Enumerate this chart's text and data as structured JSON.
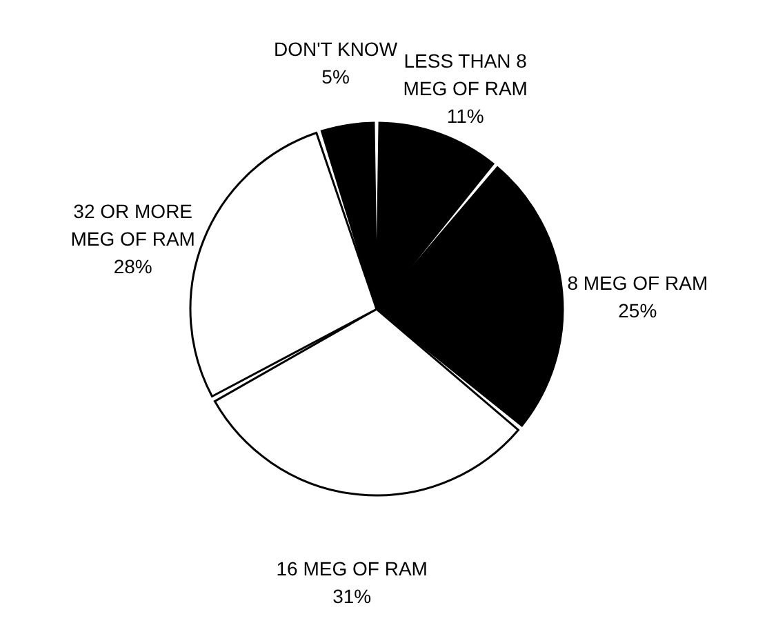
{
  "chart_data": {
    "type": "pie",
    "categories": [
      "LESS THAN 8 MEG OF RAM",
      "8 MEG OF RAM",
      "16 MEG OF RAM",
      "32 OR MORE MEG OF RAM",
      "DON'T KNOW"
    ],
    "values": [
      11,
      25,
      31,
      28,
      5
    ],
    "value_labels": [
      "11%",
      "25%",
      "31%",
      "28%",
      "5%"
    ],
    "colors": [
      "#000000",
      "#000000",
      "#ffffff",
      "#ffffff",
      "#000000"
    ],
    "legend": false
  }
}
